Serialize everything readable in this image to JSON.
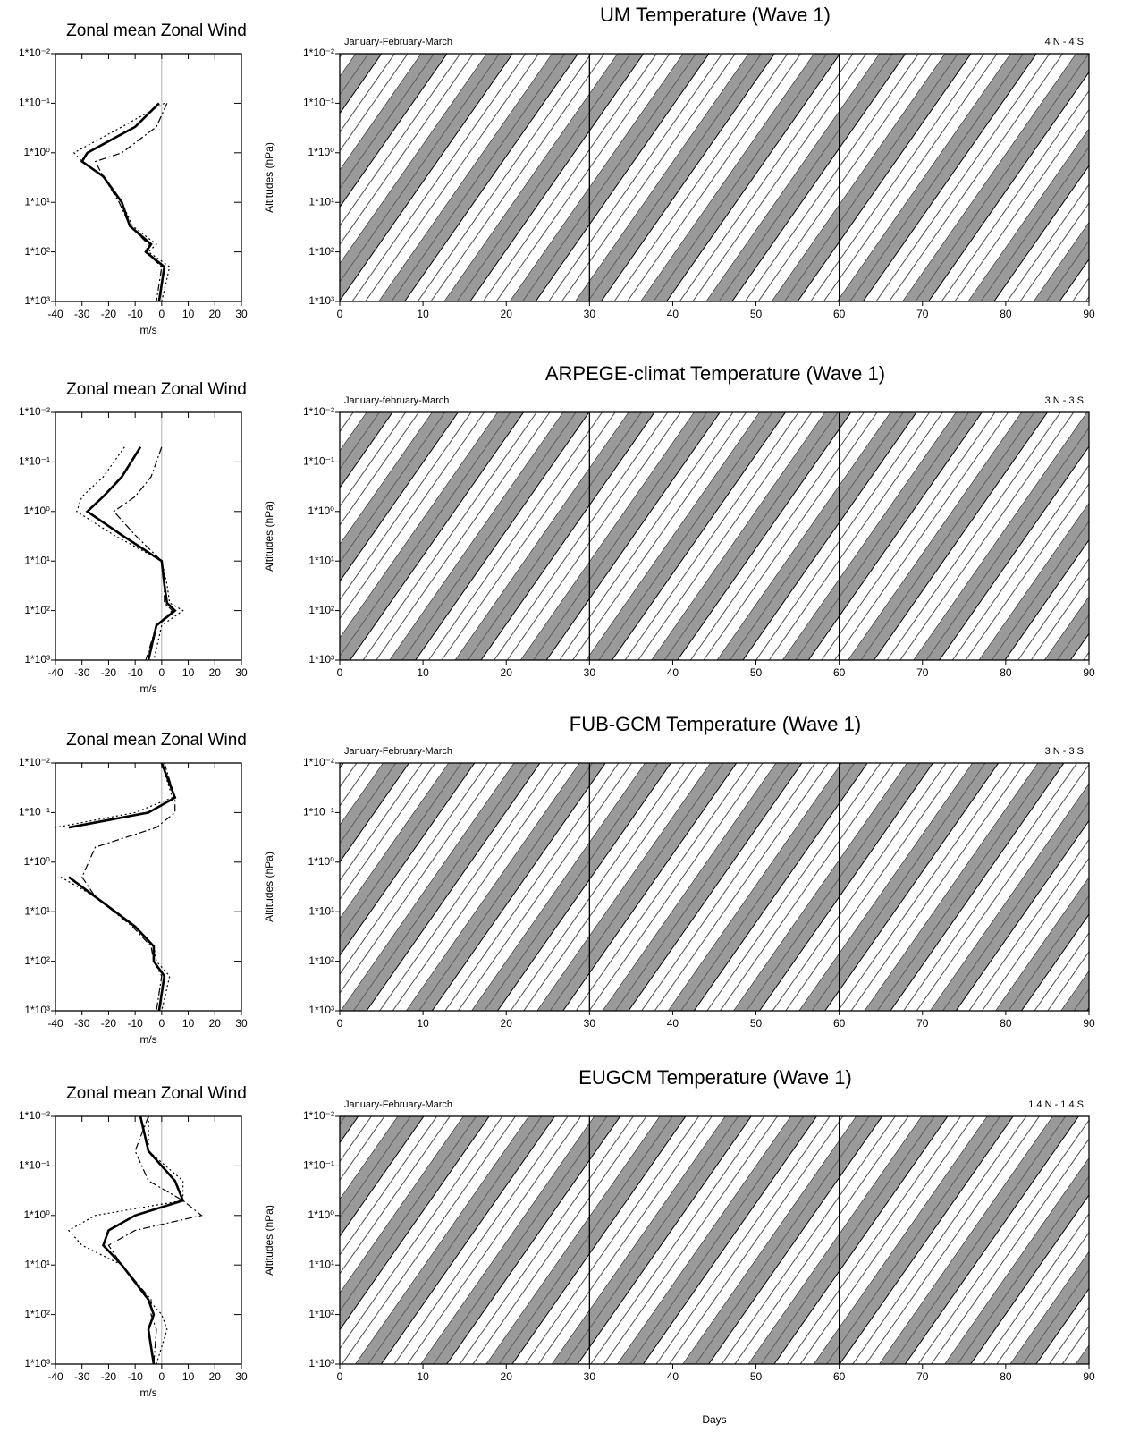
{
  "chart_data": [
    {
      "type": "profile",
      "title": "Zonal mean Zonal Wind",
      "xlabel": "m/s",
      "xlim": [
        -40,
        30
      ],
      "xticks": [
        -40,
        -30,
        -20,
        -10,
        0,
        10,
        20,
        30
      ],
      "ylim": [
        1000,
        0.01
      ],
      "log_y": true,
      "yticks": [
        {
          "value": 0.01,
          "label": "1*10⁻²"
        },
        {
          "value": 0.1,
          "label": "1*10⁻¹"
        },
        {
          "value": 1,
          "label": "1*10⁰"
        },
        {
          "value": 10,
          "label": "1*10¹"
        },
        {
          "value": 100,
          "label": "1*10²"
        },
        {
          "value": 1000,
          "label": "1*10³"
        }
      ],
      "levels": [
        0.1,
        0.3,
        1,
        1.5,
        3,
        10,
        30,
        70,
        100,
        200,
        1000
      ],
      "series": [
        {
          "color": "#000000",
          "dash": "solid",
          "values": [
            -1,
            -10,
            -28,
            -30,
            -22,
            -15,
            -12,
            -4,
            -6,
            1,
            -1
          ]
        },
        {
          "color": "#000000",
          "dash": "dot",
          "values": [
            1,
            -15,
            -33,
            -30,
            -22,
            -15,
            -11,
            -2,
            -5,
            3,
            0
          ]
        },
        {
          "color": "#000000",
          "dash": "dashdot",
          "values": [
            2,
            -2,
            -15,
            -25,
            -22,
            -16,
            -12,
            -5,
            -6,
            0,
            -2
          ]
        }
      ]
    },
    {
      "type": "contour",
      "title": "UM  Temperature     (Wave 1)",
      "period": "January-February-March",
      "region": "4 N - 4 S",
      "ylabel": "Altitudes  (hPa)",
      "xlim": [
        0,
        90
      ],
      "xticks": [
        0,
        10,
        20,
        30,
        40,
        50,
        60,
        70,
        80,
        90
      ],
      "markers": [
        30,
        60
      ],
      "ylim": [
        1000,
        0.01
      ],
      "log_y": true,
      "yticks": [
        {
          "value": 0.01,
          "label": "1*10⁻²"
        },
        {
          "value": 0.1,
          "label": "1*10⁻¹"
        },
        {
          "value": 1,
          "label": "1*10⁰"
        },
        {
          "value": 10,
          "label": "1*10¹"
        },
        {
          "value": 100,
          "label": "1*10²"
        },
        {
          "value": 1000,
          "label": "1*10³"
        }
      ]
    },
    {
      "type": "profile",
      "title": "Zonal mean Zonal Wind",
      "xlabel": "m/s",
      "xlim": [
        -40,
        30
      ],
      "xticks": [
        -40,
        -30,
        -20,
        -10,
        0,
        10,
        20,
        30
      ],
      "ylim": [
        1000,
        0.01
      ],
      "log_y": true,
      "yticks": [
        {
          "value": 0.01,
          "label": "1*10⁻²"
        },
        {
          "value": 0.1,
          "label": "1*10⁻¹"
        },
        {
          "value": 1,
          "label": "1*10⁰"
        },
        {
          "value": 10,
          "label": "1*10¹"
        },
        {
          "value": 100,
          "label": "1*10²"
        },
        {
          "value": 1000,
          "label": "1*10³"
        }
      ],
      "levels": [
        0.05,
        0.2,
        0.5,
        1,
        3,
        10,
        30,
        70,
        100,
        200,
        1000
      ],
      "series": [
        {
          "color": "#000000",
          "dash": "solid",
          "values": [
            -8,
            -15,
            -22,
            -28,
            -15,
            0,
            1,
            2,
            5,
            -2,
            -5
          ]
        },
        {
          "color": "#000000",
          "dash": "dot",
          "values": [
            -14,
            -22,
            -30,
            -32,
            -18,
            0,
            2,
            3,
            8,
            0,
            -3
          ]
        },
        {
          "color": "#000000",
          "dash": "dashdot",
          "values": [
            0,
            -4,
            -10,
            -18,
            -10,
            0,
            1,
            1,
            4,
            -2,
            -6
          ]
        }
      ]
    },
    {
      "type": "contour",
      "title": "ARPEGE-climat  Temperature     (Wave 1)",
      "period": "January-february-March",
      "region": "3 N - 3 S",
      "ylabel": "Altitudes  (hPa)",
      "xlim": [
        0,
        90
      ],
      "xticks": [
        0,
        10,
        20,
        30,
        40,
        50,
        60,
        70,
        80,
        90
      ],
      "markers": [
        30,
        60
      ],
      "ylim": [
        1000,
        0.01
      ],
      "log_y": true,
      "yticks": [
        {
          "value": 0.01,
          "label": "1*10⁻²"
        },
        {
          "value": 0.1,
          "label": "1*10⁻¹"
        },
        {
          "value": 1,
          "label": "1*10⁰"
        },
        {
          "value": 10,
          "label": "1*10¹"
        },
        {
          "value": 100,
          "label": "1*10²"
        },
        {
          "value": 1000,
          "label": "1*10³"
        }
      ]
    },
    {
      "type": "profile",
      "title": "Zonal mean Zonal Wind",
      "xlabel": "m/s",
      "xlim": [
        -40,
        30
      ],
      "xticks": [
        -40,
        -30,
        -20,
        -10,
        0,
        10,
        20,
        30
      ],
      "ylim": [
        1000,
        0.01
      ],
      "log_y": true,
      "yticks": [
        {
          "value": 0.01,
          "label": "1*10⁻²"
        },
        {
          "value": 0.1,
          "label": "1*10⁻¹"
        },
        {
          "value": 1,
          "label": "1*10⁰"
        },
        {
          "value": 10,
          "label": "1*10¹"
        },
        {
          "value": 100,
          "label": "1*10²"
        },
        {
          "value": 1000,
          "label": "1*10³"
        }
      ],
      "levels": [
        0.01,
        0.05,
        0.1,
        0.2,
        0.5,
        2,
        5,
        20,
        50,
        100,
        200,
        1000
      ],
      "series": [
        {
          "color": "#000000",
          "dash": "solid",
          "values": [
            0,
            5,
            -5,
            -35,
            null,
            -35,
            -25,
            -10,
            -3,
            -3,
            1,
            -1
          ]
        },
        {
          "color": "#000000",
          "dash": "dot",
          "values": [
            0,
            4,
            -10,
            -40,
            null,
            -38,
            -25,
            -10,
            -3,
            -2,
            3,
            0
          ]
        },
        {
          "color": "#000000",
          "dash": "dashdot",
          "values": [
            1,
            5,
            5,
            -2,
            -25,
            -30,
            -25,
            -11,
            -4,
            -3,
            0,
            -2
          ]
        }
      ]
    },
    {
      "type": "contour",
      "title": "FUB-GCM  Temperature     (Wave 1)",
      "period": "January-February-March",
      "region": "3 N - 3 S",
      "ylabel": "Altitudes  (hPa)",
      "xlim": [
        0,
        90
      ],
      "xticks": [
        0,
        10,
        20,
        30,
        40,
        50,
        60,
        70,
        80,
        90
      ],
      "markers": [
        30,
        60
      ],
      "ylim": [
        1000,
        0.01
      ],
      "log_y": true,
      "yticks": [
        {
          "value": 0.01,
          "label": "1*10⁻²"
        },
        {
          "value": 0.1,
          "label": "1*10⁻¹"
        },
        {
          "value": 1,
          "label": "1*10⁰"
        },
        {
          "value": 10,
          "label": "1*10¹"
        },
        {
          "value": 100,
          "label": "1*10²"
        },
        {
          "value": 1000,
          "label": "1*10³"
        }
      ]
    },
    {
      "type": "profile",
      "title": "Zonal mean Zonal Wind",
      "xlabel": "m/s",
      "xlim": [
        -40,
        30
      ],
      "xticks": [
        -40,
        -30,
        -20,
        -10,
        0,
        10,
        20,
        30
      ],
      "ylim": [
        1000,
        0.01
      ],
      "log_y": true,
      "yticks": [
        {
          "value": 0.01,
          "label": "1*10⁻²"
        },
        {
          "value": 0.1,
          "label": "1*10⁻¹"
        },
        {
          "value": 1,
          "label": "1*10⁰"
        },
        {
          "value": 10,
          "label": "1*10¹"
        },
        {
          "value": 100,
          "label": "1*10²"
        },
        {
          "value": 1000,
          "label": "1*10³"
        }
      ],
      "levels": [
        0.01,
        0.05,
        0.2,
        0.5,
        1,
        2,
        4,
        10,
        50,
        100,
        200,
        1000
      ],
      "series": [
        {
          "color": "#000000",
          "dash": "solid",
          "values": [
            -8,
            -5,
            5,
            8,
            -10,
            -20,
            -22,
            -15,
            -5,
            -3,
            -5,
            -3
          ]
        },
        {
          "color": "#000000",
          "dash": "dot",
          "values": [
            -5,
            -5,
            8,
            8,
            -25,
            -35,
            -30,
            -15,
            -5,
            0,
            2,
            -2
          ]
        },
        {
          "color": "#000000",
          "dash": "dashdot",
          "values": [
            -5,
            -10,
            -5,
            8,
            15,
            -10,
            -20,
            -15,
            -4,
            -4,
            -2,
            -3
          ]
        }
      ]
    },
    {
      "type": "contour",
      "title": "EUGCM  Temperature     (Wave 1)",
      "period": "January-February-March",
      "region": "1.4 N - 1.4 S",
      "ylabel": "Altitudes  (hPa)",
      "xlabel": "Days",
      "xlim": [
        0,
        90
      ],
      "xticks": [
        0,
        10,
        20,
        30,
        40,
        50,
        60,
        70,
        80,
        90
      ],
      "markers": [
        30,
        60
      ],
      "ylim": [
        1000,
        0.01
      ],
      "log_y": true,
      "yticks": [
        {
          "value": 0.01,
          "label": "1*10⁻²"
        },
        {
          "value": 0.1,
          "label": "1*10⁻¹"
        },
        {
          "value": 1,
          "label": "1*10⁰"
        },
        {
          "value": 10,
          "label": "1*10¹"
        },
        {
          "value": 100,
          "label": "1*10²"
        },
        {
          "value": 1000,
          "label": "1*10³"
        }
      ]
    }
  ]
}
